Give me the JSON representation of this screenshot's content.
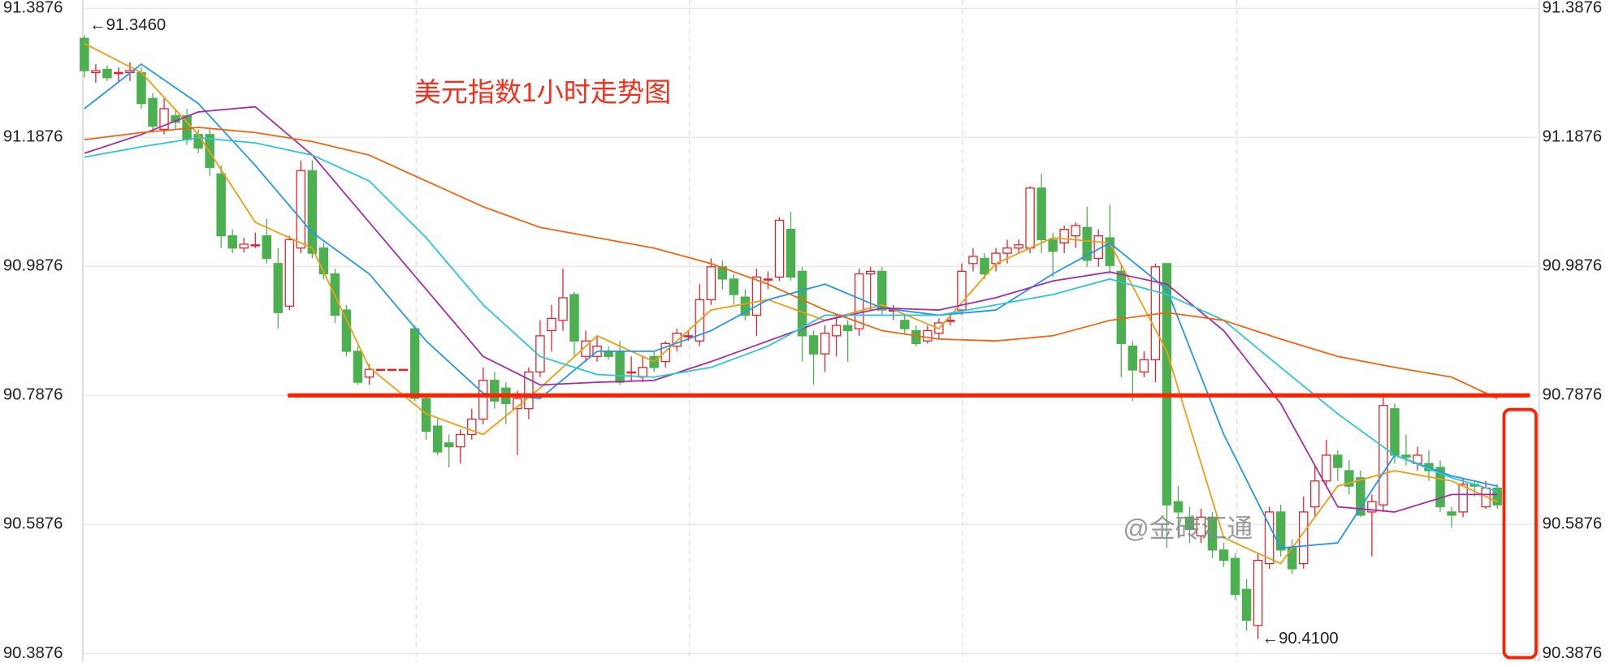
{
  "chart_data": {
    "type": "candlestick",
    "title": "美元指数1小时走势图",
    "watermark": "@金砖汇通",
    "open": [
      91.341,
      91.288,
      91.293,
      91.288,
      91.288,
      91.288,
      91.248,
      91.2,
      91.221,
      91.221,
      91.192,
      91.192,
      91.131,
      91.035,
      91.016,
      91.021,
      91.035,
      90.992,
      90.926,
      91.016,
      91.136,
      91.016,
      90.976,
      90.92,
      90.856,
      90.816,
      90.828,
      90.828,
      90.828,
      90.891,
      90.783,
      90.74,
      90.714,
      90.708,
      90.727,
      90.751,
      90.811,
      90.799,
      90.767,
      90.767,
      90.824,
      90.888,
      90.904,
      90.944,
      90.848,
      90.848,
      90.856,
      90.856,
      90.824,
      90.816,
      90.848,
      90.84,
      90.864,
      90.88,
      90.872,
      90.936,
      90.987,
      90.968,
      90.94,
      90.912,
      90.968,
      90.971,
      91.045,
      90.98,
      90.88,
      90.852,
      90.88,
      90.896,
      90.891,
      90.976,
      90.98,
      90.92,
      90.904,
      90.888,
      90.872,
      90.884,
      90.904,
      90.92,
      90.992,
      91.0,
      90.992,
      91.008,
      91.016,
      91.016,
      91.109,
      91.029,
      91.024,
      91.035,
      91.048,
      91.0,
      91.032,
      90.98,
      90.864,
      90.824,
      90.843,
      90.992,
      90.623,
      90.599,
      90.57,
      90.599,
      90.548,
      90.535,
      90.487,
      90.431,
      90.527,
      90.607,
      90.551,
      90.527,
      90.615,
      90.655,
      90.695,
      90.671,
      90.66,
      90.607,
      90.618,
      90.767,
      90.695,
      90.682,
      90.682,
      90.676,
      90.607,
      90.607,
      90.65,
      90.615,
      90.644
    ],
    "high": [
      91.346,
      91.301,
      91.299,
      91.296,
      91.304,
      91.296,
      91.256,
      91.248,
      91.232,
      91.232,
      91.2,
      91.2,
      91.144,
      91.045,
      91.032,
      91.04,
      91.061,
      91.016,
      91.035,
      91.152,
      91.152,
      91.024,
      90.984,
      90.928,
      90.864,
      90.836,
      90.828,
      90.828,
      90.828,
      90.896,
      90.791,
      90.751,
      90.727,
      90.735,
      90.767,
      90.831,
      90.824,
      90.808,
      90.795,
      90.831,
      90.904,
      90.928,
      90.984,
      90.948,
      90.888,
      90.88,
      90.864,
      90.872,
      90.848,
      90.848,
      90.856,
      90.872,
      90.891,
      90.888,
      90.96,
      91.0,
      90.997,
      90.976,
      90.952,
      90.984,
      90.98,
      91.064,
      91.072,
      90.987,
      90.888,
      90.896,
      90.912,
      90.904,
      90.984,
      90.987,
      90.987,
      90.928,
      90.912,
      90.896,
      90.896,
      90.907,
      90.912,
      90.992,
      91.016,
      91.008,
      91.016,
      91.029,
      91.029,
      91.112,
      91.131,
      91.04,
      91.051,
      91.056,
      91.08,
      91.045,
      91.083,
      90.992,
      90.872,
      90.856,
      90.992,
      90.992,
      90.647,
      90.615,
      90.612,
      90.607,
      90.559,
      90.543,
      90.503,
      90.543,
      90.615,
      90.618,
      90.564,
      90.631,
      90.679,
      90.719,
      90.703,
      90.687,
      90.671,
      90.634,
      90.788,
      90.775,
      90.727,
      90.708,
      90.703,
      90.687,
      90.615,
      90.66,
      90.655,
      90.655,
      90.65
    ],
    "low": [
      91.28,
      91.272,
      91.275,
      91.272,
      91.275,
      91.232,
      91.195,
      91.192,
      91.2,
      91.176,
      91.163,
      91.128,
      91.016,
      91.008,
      91.009,
      91.016,
      90.992,
      90.891,
      90.92,
      91.008,
      91.0,
      90.968,
      90.9,
      90.848,
      90.804,
      90.804,
      90.828,
      90.828,
      90.828,
      90.779,
      90.719,
      90.695,
      90.676,
      90.682,
      90.719,
      90.743,
      90.767,
      90.743,
      90.695,
      90.751,
      90.816,
      90.856,
      90.888,
      90.848,
      90.84,
      90.84,
      90.843,
      90.804,
      90.808,
      90.808,
      90.824,
      90.831,
      90.856,
      90.872,
      90.864,
      90.928,
      90.952,
      90.928,
      90.904,
      90.88,
      90.952,
      90.965,
      90.965,
      90.84,
      90.804,
      90.824,
      90.848,
      90.84,
      90.88,
      90.92,
      90.912,
      90.904,
      90.884,
      90.864,
      90.868,
      90.875,
      90.896,
      90.912,
      90.98,
      90.968,
      90.98,
      90.992,
      91.008,
      91.008,
      91.008,
      90.971,
      91.008,
      91.016,
      90.987,
      90.987,
      90.976,
      90.816,
      90.779,
      90.816,
      90.808,
      90.551,
      90.567,
      90.559,
      90.559,
      90.535,
      90.522,
      90.471,
      90.423,
      90.41,
      90.519,
      90.538,
      90.511,
      90.519,
      90.599,
      90.647,
      90.655,
      90.634,
      90.599,
      90.538,
      90.607,
      90.682,
      90.679,
      90.671,
      90.655,
      90.607,
      90.583,
      90.599,
      90.631,
      90.612,
      90.612
    ],
    "close": [
      91.291,
      91.291,
      91.28,
      91.288,
      91.291,
      91.24,
      91.205,
      91.232,
      91.211,
      91.184,
      91.171,
      91.141,
      91.035,
      91.016,
      91.022,
      91.021,
      91.0,
      90.916,
      91.029,
      91.136,
      91.008,
      90.976,
      90.912,
      90.856,
      90.808,
      90.828,
      90.828,
      90.828,
      90.828,
      90.783,
      90.732,
      90.7,
      90.708,
      90.727,
      90.751,
      90.811,
      90.779,
      90.775,
      90.783,
      90.824,
      90.88,
      90.907,
      90.939,
      90.872,
      90.872,
      90.864,
      90.848,
      90.808,
      90.824,
      90.831,
      90.831,
      90.868,
      90.884,
      90.88,
      90.936,
      90.987,
      90.968,
      90.944,
      90.912,
      90.971,
      90.968,
      91.059,
      90.971,
      90.88,
      90.852,
      90.884,
      90.896,
      90.888,
      90.976,
      90.98,
      90.92,
      90.92,
      90.891,
      90.868,
      90.888,
      90.9,
      90.904,
      90.98,
      91.003,
      90.976,
      91.008,
      91.016,
      91.021,
      91.109,
      91.029,
      91.011,
      91.045,
      91.051,
      90.997,
      91.035,
      90.989,
      90.868,
      90.827,
      90.843,
      90.987,
      90.618,
      90.607,
      90.58,
      90.599,
      90.548,
      90.532,
      90.479,
      90.439,
      90.532,
      90.607,
      90.548,
      90.519,
      90.607,
      90.655,
      90.695,
      90.676,
      90.647,
      90.602,
      90.623,
      90.772,
      90.695,
      90.692,
      90.695,
      90.671,
      90.615,
      90.602,
      90.65,
      90.647,
      90.644,
      90.618
    ],
    "up_color": "#e8202a",
    "down_color": "#4caf50",
    "moving_averages": [
      {
        "color": "#f39c12",
        "x": [
          0,
          5,
          10,
          15,
          20,
          25,
          30,
          35,
          40,
          45,
          50,
          55,
          60,
          65,
          70,
          75,
          80,
          85,
          90,
          95,
          100,
          105,
          110,
          115,
          120,
          124
        ],
        "values": [
          91.333,
          91.288,
          91.192,
          91.056,
          91.016,
          90.831,
          90.759,
          90.727,
          90.799,
          90.88,
          90.84,
          90.92,
          90.936,
          90.904,
          90.928,
          90.891,
          90.992,
          91.032,
          91.024,
          90.856,
          90.567,
          90.527,
          90.647,
          90.671,
          90.655,
          90.623
        ]
      },
      {
        "color": "#2196f3",
        "x": [
          0,
          5,
          10,
          15,
          20,
          25,
          30,
          35,
          40,
          45,
          50,
          55,
          60,
          65,
          70,
          75,
          80,
          85,
          90,
          95,
          100,
          105,
          110,
          115,
          120,
          124
        ],
        "values": [
          91.232,
          91.301,
          91.24,
          91.144,
          91.04,
          90.976,
          90.872,
          90.791,
          90.783,
          90.856,
          90.856,
          90.888,
          90.936,
          90.96,
          90.923,
          90.912,
          90.92,
          90.976,
          91.024,
          90.952,
          90.727,
          90.551,
          90.559,
          90.695,
          90.663,
          90.647
        ]
      },
      {
        "color": "#a62ca8",
        "x": [
          0,
          5,
          10,
          15,
          20,
          25,
          30,
          35,
          40,
          45,
          50,
          55,
          60,
          65,
          70,
          75,
          80,
          85,
          90,
          95,
          100,
          105,
          110,
          115,
          120,
          124
        ],
        "values": [
          91.163,
          91.192,
          91.227,
          91.235,
          91.16,
          91.056,
          90.952,
          90.848,
          90.804,
          90.808,
          90.811,
          90.84,
          90.872,
          90.904,
          90.923,
          90.92,
          90.939,
          90.965,
          90.979,
          90.96,
          90.888,
          90.775,
          90.615,
          90.607,
          90.634,
          90.634
        ]
      },
      {
        "color": "#2cc6d4",
        "x": [
          0,
          5,
          10,
          15,
          20,
          25,
          30,
          35,
          40,
          45,
          50,
          55,
          60,
          65,
          70,
          75,
          80,
          85,
          90,
          95,
          100,
          105,
          110,
          115,
          120,
          124
        ],
        "values": [
          91.157,
          91.173,
          91.187,
          91.179,
          91.16,
          91.12,
          91.032,
          90.928,
          90.848,
          90.82,
          90.816,
          90.831,
          90.864,
          90.912,
          90.912,
          90.912,
          90.928,
          90.944,
          90.968,
          90.944,
          90.904,
          90.831,
          90.759,
          90.695,
          90.66,
          90.639
        ]
      },
      {
        "color": "#f4640f",
        "x": [
          0,
          5,
          10,
          15,
          20,
          25,
          30,
          35,
          40,
          45,
          50,
          55,
          60,
          65,
          70,
          75,
          80,
          85,
          90,
          95,
          100,
          105,
          110,
          115,
          120,
          124
        ],
        "values": [
          91.184,
          91.195,
          91.203,
          91.195,
          91.181,
          91.16,
          91.12,
          91.08,
          91.048,
          91.032,
          91.016,
          90.992,
          90.96,
          90.92,
          90.888,
          90.875,
          90.872,
          90.88,
          90.904,
          90.916,
          90.904,
          90.875,
          90.848,
          90.831,
          90.816,
          90.783
        ]
      }
    ],
    "reference_line": {
      "value": 90.7876,
      "color": "#ff2000"
    },
    "high_label": "←91.3460",
    "low_label": "←90.4100",
    "ylim": [
      90.3876,
      91.3876
    ],
    "yticks": [
      90.3876,
      90.5876,
      90.7876,
      90.9876,
      91.1876,
      91.3876
    ],
    "grid": true
  }
}
